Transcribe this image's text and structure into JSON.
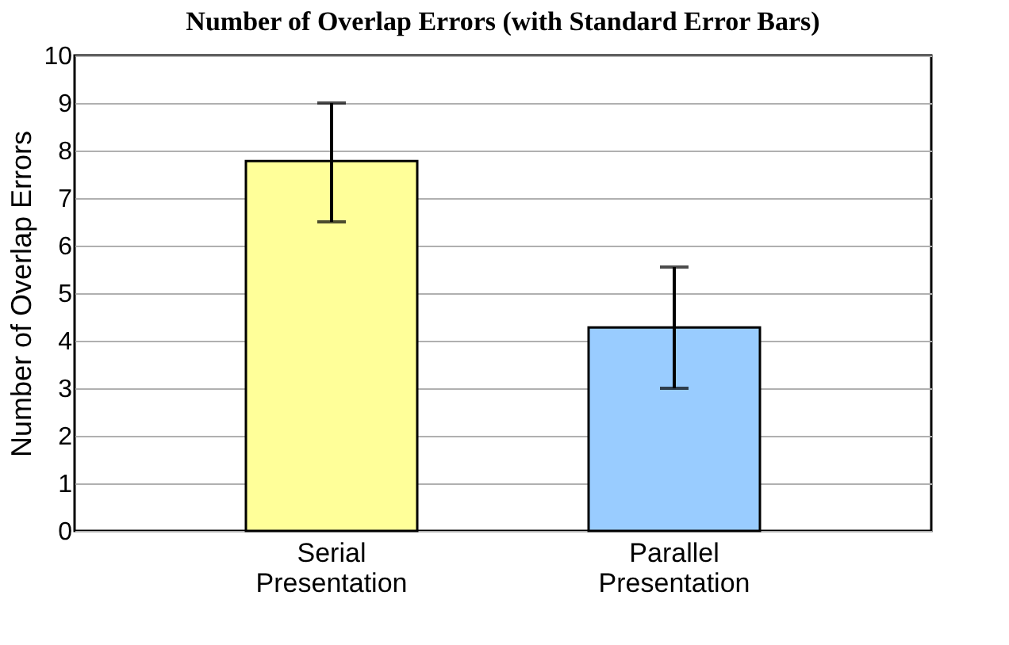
{
  "chart_data": {
    "type": "bar",
    "title": "Number of Overlap Errors (with Standard Error Bars)",
    "ylabel": "Number of Overlap Errors",
    "categories": [
      "Serial Presentation",
      "Parallel Presentation"
    ],
    "values": [
      7.78,
      4.28
    ],
    "colors": [
      "#ffff99",
      "#99ccff"
    ],
    "errors": [
      [
        6.5,
        9.0
      ],
      [
        3.0,
        5.55
      ]
    ],
    "ylim": [
      0,
      10
    ],
    "yticks": [
      0,
      1,
      2,
      3,
      4,
      5,
      6,
      7,
      8,
      9,
      10
    ],
    "grid": "y",
    "legend": false
  }
}
